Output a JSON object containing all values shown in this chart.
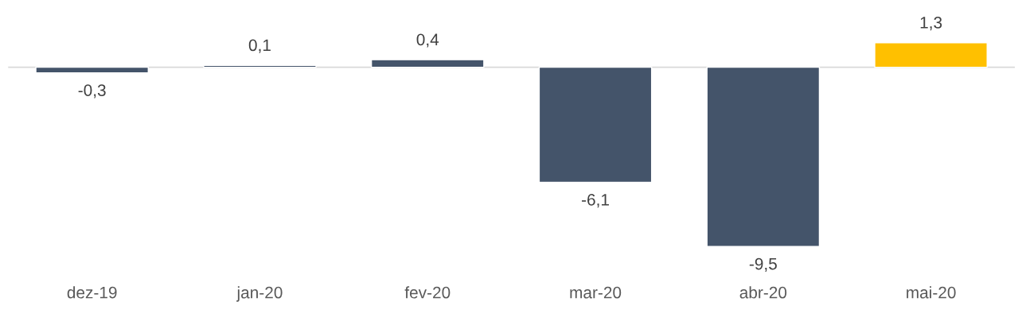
{
  "chart_data": {
    "type": "bar",
    "categories": [
      "dez-19",
      "jan-20",
      "fev-20",
      "mar-20",
      "abr-20",
      "mai-20"
    ],
    "values": [
      -0.3,
      0.1,
      0.4,
      -6.1,
      -9.5,
      1.3
    ],
    "value_labels": [
      "-0,3",
      "0,1",
      "0,4",
      "-6,1",
      "-9,5",
      "1,3"
    ],
    "colors": [
      "#44546a",
      "#44546a",
      "#44546a",
      "#44546a",
      "#44546a",
      "#ffc000"
    ],
    "grid": false,
    "legend": false
  }
}
